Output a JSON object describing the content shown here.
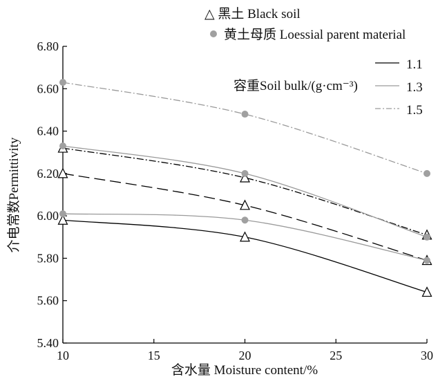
{
  "chart_data": {
    "type": "line",
    "xlabel": "含水量 Moisture content/%",
    "ylabel": "介电常数Permittivity",
    "xlim": [
      10,
      30
    ],
    "ylim": [
      5.4,
      6.8
    ],
    "x_ticks": [
      "10",
      "15",
      "20",
      "25",
      "30"
    ],
    "y_ticks": [
      "5.40",
      "5.60",
      "5.80",
      "6.00",
      "6.20",
      "6.40",
      "6.60",
      "6.80"
    ],
    "x_tick_values": [
      10,
      15,
      20,
      25,
      30
    ],
    "y_tick_values": [
      5.4,
      5.6,
      5.8,
      6.0,
      6.2,
      6.4,
      6.6,
      6.8
    ],
    "grid": false,
    "legend_markers": {
      "black_soil": "△ 黑土 Black soil",
      "loessial": "黄土母质 Loessial parent material"
    },
    "legend_lines": {
      "title": "容重Soil bulk/(g·cm⁻³)",
      "items": [
        "1.1",
        "1.3",
        "1.5"
      ]
    },
    "series": [
      {
        "soil": "black",
        "bulk": "1.1",
        "x": [
          10,
          20,
          30
        ],
        "y": [
          5.98,
          5.9,
          5.64
        ]
      },
      {
        "soil": "black",
        "bulk": "1.3",
        "x": [
          10,
          20,
          30
        ],
        "y": [
          6.2,
          6.05,
          5.79
        ]
      },
      {
        "soil": "black",
        "bulk": "1.5",
        "x": [
          10,
          20,
          30
        ],
        "y": [
          6.32,
          6.18,
          5.91
        ]
      },
      {
        "soil": "loess",
        "bulk": "1.1",
        "x": [
          10,
          20,
          30
        ],
        "y": [
          6.01,
          5.98,
          5.79
        ]
      },
      {
        "soil": "loess",
        "bulk": "1.3",
        "x": [
          10,
          20,
          30
        ],
        "y": [
          6.33,
          6.2,
          5.9
        ]
      },
      {
        "soil": "loess",
        "bulk": "1.5",
        "x": [
          10,
          20,
          30
        ],
        "y": [
          6.63,
          6.48,
          6.2
        ]
      }
    ],
    "colors": {
      "black_line": "#000000",
      "gray_line": "#9a9a9a",
      "gray_marker": "#a0a0a0"
    }
  }
}
